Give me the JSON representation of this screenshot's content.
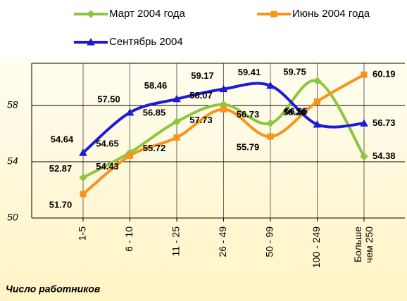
{
  "chart_data": {
    "type": "line",
    "x_label": "Число работников",
    "categories": [
      "1-5",
      "6 - 10",
      "11 - 25",
      "26 - 49",
      "50 - 99",
      "100 - 249",
      "Больше чем 250"
    ],
    "series": [
      {
        "name": "Март 2004 года",
        "color": "#8dc63f",
        "marker": "diamond",
        "values": [
          52.87,
          54.65,
          56.85,
          58.07,
          56.73,
          59.75,
          54.38
        ],
        "value_labels": [
          "52.87",
          "54.65",
          "56.85",
          "58.07",
          "56.73",
          "59.75",
          "54.38"
        ]
      },
      {
        "name": "Июнь 2004 года",
        "color": "#f7941d",
        "marker": "square",
        "values": [
          51.7,
          54.43,
          55.72,
          57.73,
          55.79,
          58.28,
          60.19
        ],
        "value_labels": [
          "51.70",
          "54.43",
          "55.72",
          "57.73",
          "55.79",
          "58.28",
          "60.19"
        ]
      },
      {
        "name": "Сентябрь 2004",
        "color": "#1c1cd6",
        "marker": "triangle",
        "values": [
          54.64,
          57.5,
          58.46,
          59.17,
          59.41,
          56.65,
          56.73
        ],
        "value_labels": [
          "54.64",
          "57.50",
          "58.46",
          "59.17",
          "59.41",
          "56.65",
          "56.73"
        ]
      }
    ],
    "ylim": [
      50,
      61
    ],
    "yticks": [
      50,
      54,
      58
    ],
    "grid": true,
    "smooth": true
  }
}
